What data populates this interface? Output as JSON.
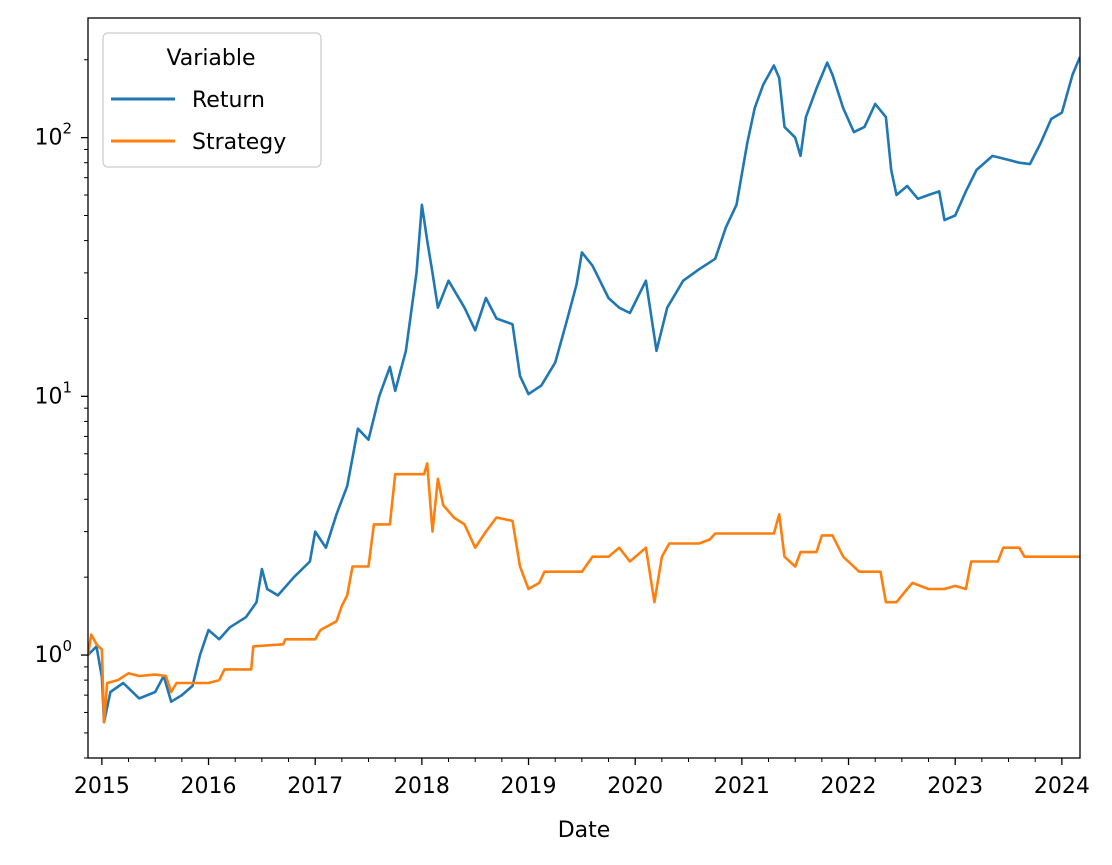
{
  "chart_data": {
    "type": "line",
    "title": "",
    "xlabel": "Date",
    "ylabel": "",
    "yscale": "log",
    "xlim": [
      2014.87,
      2024.17
    ],
    "ylim": [
      0.4,
      290
    ],
    "x_ticks": [
      2015,
      2016,
      2017,
      2018,
      2019,
      2020,
      2021,
      2022,
      2023,
      2024
    ],
    "x_tick_labels": [
      "2015",
      "2016",
      "2017",
      "2018",
      "2019",
      "2020",
      "2021",
      "2022",
      "2023",
      "2024"
    ],
    "y_ticks": [
      1,
      10,
      100
    ],
    "y_tick_labels": [
      {
        "base": "10",
        "exp": "0"
      },
      {
        "base": "10",
        "exp": "1"
      },
      {
        "base": "10",
        "exp": "2"
      }
    ],
    "legend": {
      "title": "Variable",
      "placement": "top-left"
    },
    "series": [
      {
        "name": "Return",
        "color": "#1f77b4",
        "points": [
          [
            2014.87,
            1.0
          ],
          [
            2014.95,
            1.08
          ],
          [
            2015.0,
            0.82
          ],
          [
            2015.02,
            0.55
          ],
          [
            2015.08,
            0.72
          ],
          [
            2015.2,
            0.78
          ],
          [
            2015.35,
            0.68
          ],
          [
            2015.5,
            0.72
          ],
          [
            2015.58,
            0.83
          ],
          [
            2015.65,
            0.66
          ],
          [
            2015.75,
            0.7
          ],
          [
            2015.85,
            0.76
          ],
          [
            2015.92,
            1.0
          ],
          [
            2016.0,
            1.25
          ],
          [
            2016.1,
            1.15
          ],
          [
            2016.2,
            1.28
          ],
          [
            2016.35,
            1.4
          ],
          [
            2016.45,
            1.6
          ],
          [
            2016.5,
            2.15
          ],
          [
            2016.55,
            1.8
          ],
          [
            2016.65,
            1.7
          ],
          [
            2016.8,
            2.0
          ],
          [
            2016.95,
            2.3
          ],
          [
            2017.0,
            3.0
          ],
          [
            2017.1,
            2.6
          ],
          [
            2017.2,
            3.5
          ],
          [
            2017.3,
            4.5
          ],
          [
            2017.4,
            7.5
          ],
          [
            2017.5,
            6.8
          ],
          [
            2017.6,
            10.0
          ],
          [
            2017.7,
            13.0
          ],
          [
            2017.75,
            10.5
          ],
          [
            2017.85,
            15.0
          ],
          [
            2017.95,
            30.0
          ],
          [
            2018.0,
            55.0
          ],
          [
            2018.05,
            40.0
          ],
          [
            2018.1,
            30.0
          ],
          [
            2018.15,
            22.0
          ],
          [
            2018.25,
            28.0
          ],
          [
            2018.4,
            22.0
          ],
          [
            2018.5,
            18.0
          ],
          [
            2018.6,
            24.0
          ],
          [
            2018.7,
            20.0
          ],
          [
            2018.85,
            19.0
          ],
          [
            2018.92,
            12.0
          ],
          [
            2019.0,
            10.2
          ],
          [
            2019.12,
            11.0
          ],
          [
            2019.25,
            13.5
          ],
          [
            2019.35,
            19.0
          ],
          [
            2019.45,
            27.0
          ],
          [
            2019.5,
            36.0
          ],
          [
            2019.6,
            32.0
          ],
          [
            2019.75,
            24.0
          ],
          [
            2019.85,
            22.0
          ],
          [
            2019.95,
            21.0
          ],
          [
            2020.1,
            28.0
          ],
          [
            2020.2,
            15.0
          ],
          [
            2020.3,
            22.0
          ],
          [
            2020.45,
            28.0
          ],
          [
            2020.6,
            31.0
          ],
          [
            2020.75,
            34.0
          ],
          [
            2020.85,
            45.0
          ],
          [
            2020.95,
            55.0
          ],
          [
            2021.05,
            95.0
          ],
          [
            2021.12,
            130.0
          ],
          [
            2021.2,
            160.0
          ],
          [
            2021.3,
            190.0
          ],
          [
            2021.35,
            170.0
          ],
          [
            2021.4,
            110.0
          ],
          [
            2021.5,
            100.0
          ],
          [
            2021.55,
            85.0
          ],
          [
            2021.6,
            120.0
          ],
          [
            2021.7,
            155.0
          ],
          [
            2021.8,
            195.0
          ],
          [
            2021.85,
            175.0
          ],
          [
            2021.95,
            130.0
          ],
          [
            2022.05,
            105.0
          ],
          [
            2022.15,
            110.0
          ],
          [
            2022.25,
            135.0
          ],
          [
            2022.35,
            120.0
          ],
          [
            2022.4,
            75.0
          ],
          [
            2022.45,
            60.0
          ],
          [
            2022.55,
            65.0
          ],
          [
            2022.65,
            58.0
          ],
          [
            2022.75,
            60.0
          ],
          [
            2022.85,
            62.0
          ],
          [
            2022.9,
            48.0
          ],
          [
            2023.0,
            50.0
          ],
          [
            2023.1,
            62.0
          ],
          [
            2023.2,
            75.0
          ],
          [
            2023.35,
            85.0
          ],
          [
            2023.5,
            82.0
          ],
          [
            2023.6,
            80.0
          ],
          [
            2023.7,
            79.0
          ],
          [
            2023.8,
            95.0
          ],
          [
            2023.9,
            118.0
          ],
          [
            2024.0,
            125.0
          ],
          [
            2024.1,
            175.0
          ],
          [
            2024.17,
            205.0
          ]
        ]
      },
      {
        "name": "Strategy",
        "color": "#ff7f0e",
        "points": [
          [
            2014.87,
            1.0
          ],
          [
            2014.9,
            1.2
          ],
          [
            2014.95,
            1.1
          ],
          [
            2015.0,
            1.05
          ],
          [
            2015.02,
            0.55
          ],
          [
            2015.05,
            0.78
          ],
          [
            2015.15,
            0.8
          ],
          [
            2015.25,
            0.85
          ],
          [
            2015.35,
            0.83
          ],
          [
            2015.5,
            0.84
          ],
          [
            2015.6,
            0.83
          ],
          [
            2015.65,
            0.72
          ],
          [
            2015.7,
            0.78
          ],
          [
            2015.8,
            0.78
          ],
          [
            2016.0,
            0.78
          ],
          [
            2016.1,
            0.8
          ],
          [
            2016.15,
            0.88
          ],
          [
            2016.4,
            0.88
          ],
          [
            2016.42,
            1.08
          ],
          [
            2016.7,
            1.1
          ],
          [
            2016.72,
            1.15
          ],
          [
            2017.0,
            1.15
          ],
          [
            2017.05,
            1.25
          ],
          [
            2017.2,
            1.35
          ],
          [
            2017.25,
            1.55
          ],
          [
            2017.3,
            1.7
          ],
          [
            2017.35,
            2.2
          ],
          [
            2017.5,
            2.2
          ],
          [
            2017.55,
            3.2
          ],
          [
            2017.7,
            3.2
          ],
          [
            2017.75,
            5.0
          ],
          [
            2018.02,
            5.0
          ],
          [
            2018.05,
            5.5
          ],
          [
            2018.1,
            3.0
          ],
          [
            2018.15,
            4.8
          ],
          [
            2018.2,
            3.8
          ],
          [
            2018.3,
            3.4
          ],
          [
            2018.4,
            3.2
          ],
          [
            2018.5,
            2.6
          ],
          [
            2018.6,
            3.0
          ],
          [
            2018.7,
            3.4
          ],
          [
            2018.85,
            3.3
          ],
          [
            2018.92,
            2.2
          ],
          [
            2019.0,
            1.8
          ],
          [
            2019.1,
            1.9
          ],
          [
            2019.15,
            2.1
          ],
          [
            2019.3,
            2.1
          ],
          [
            2019.5,
            2.1
          ],
          [
            2019.6,
            2.4
          ],
          [
            2019.75,
            2.4
          ],
          [
            2019.85,
            2.6
          ],
          [
            2019.95,
            2.3
          ],
          [
            2020.1,
            2.6
          ],
          [
            2020.18,
            1.6
          ],
          [
            2020.25,
            2.4
          ],
          [
            2020.32,
            2.7
          ],
          [
            2020.6,
            2.7
          ],
          [
            2020.7,
            2.8
          ],
          [
            2020.75,
            2.95
          ],
          [
            2021.0,
            2.95
          ],
          [
            2021.3,
            2.95
          ],
          [
            2021.35,
            3.5
          ],
          [
            2021.4,
            2.4
          ],
          [
            2021.5,
            2.2
          ],
          [
            2021.55,
            2.5
          ],
          [
            2021.7,
            2.5
          ],
          [
            2021.75,
            2.9
          ],
          [
            2021.85,
            2.9
          ],
          [
            2021.95,
            2.4
          ],
          [
            2022.1,
            2.1
          ],
          [
            2022.3,
            2.1
          ],
          [
            2022.35,
            1.6
          ],
          [
            2022.45,
            1.6
          ],
          [
            2022.55,
            1.8
          ],
          [
            2022.6,
            1.9
          ],
          [
            2022.75,
            1.8
          ],
          [
            2022.9,
            1.8
          ],
          [
            2023.0,
            1.85
          ],
          [
            2023.1,
            1.8
          ],
          [
            2023.15,
            2.3
          ],
          [
            2023.4,
            2.3
          ],
          [
            2023.45,
            2.6
          ],
          [
            2023.6,
            2.6
          ],
          [
            2023.65,
            2.4
          ],
          [
            2023.7,
            2.4
          ],
          [
            2024.0,
            2.4
          ],
          [
            2024.17,
            2.4
          ]
        ]
      }
    ]
  }
}
